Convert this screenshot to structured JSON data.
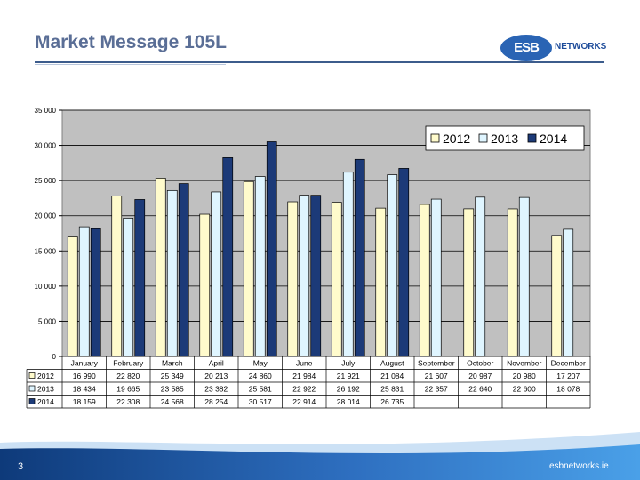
{
  "slide": {
    "title": "Market Message 105L",
    "page_number": "3",
    "footer_url": "esbnetworks.ie"
  },
  "logo": {
    "mark": "ESB",
    "text": "NETWORKS"
  },
  "colors": {
    "title": "#5a6e96",
    "logo_blue": "#2a64b4",
    "series_2012": "#fffbcc",
    "series_2013": "#dff5ff",
    "series_2014": "#1c3a78",
    "plot_bg": "#c0c0c0"
  },
  "chart_data": {
    "type": "bar",
    "title": "",
    "xlabel": "",
    "ylabel": "",
    "ylim": [
      0,
      35000
    ],
    "yticks": [
      0,
      5000,
      10000,
      15000,
      20000,
      25000,
      30000,
      35000
    ],
    "ytick_labels": [
      "0",
      "5 000",
      "10 000",
      "15 000",
      "20 000",
      "25 000",
      "30 000",
      "35 000"
    ],
    "grid": true,
    "legend_position": "top-right",
    "categories": [
      "January",
      "February",
      "March",
      "April",
      "May",
      "June",
      "July",
      "August",
      "September",
      "October",
      "November",
      "December"
    ],
    "series": [
      {
        "name": "2012",
        "values": [
          16990,
          22820,
          25349,
          20213,
          24860,
          21984,
          21921,
          21084,
          21607,
          20987,
          20980,
          17207
        ],
        "labels": [
          "16 990",
          "22 820",
          "25 349",
          "20 213",
          "24 860",
          "21 984",
          "21 921",
          "21 084",
          "21 607",
          "20 987",
          "20 980",
          "17 207"
        ]
      },
      {
        "name": "2013",
        "values": [
          18434,
          19665,
          23585,
          23382,
          25581,
          22922,
          26192,
          25831,
          22357,
          22640,
          22600,
          18078
        ],
        "labels": [
          "18 434",
          "19 665",
          "23 585",
          "23 382",
          "25 581",
          "22 922",
          "26 192",
          "25 831",
          "22 357",
          "22 640",
          "22 600",
          "18 078"
        ]
      },
      {
        "name": "2014",
        "values": [
          18159,
          22308,
          24568,
          28254,
          30517,
          22914,
          28014,
          26735,
          null,
          null,
          null,
          null
        ],
        "labels": [
          "18 159",
          "22 308",
          "24 568",
          "28 254",
          "30 517",
          "22 914",
          "28 014",
          "26 735",
          "",
          "",
          "",
          ""
        ]
      }
    ]
  }
}
